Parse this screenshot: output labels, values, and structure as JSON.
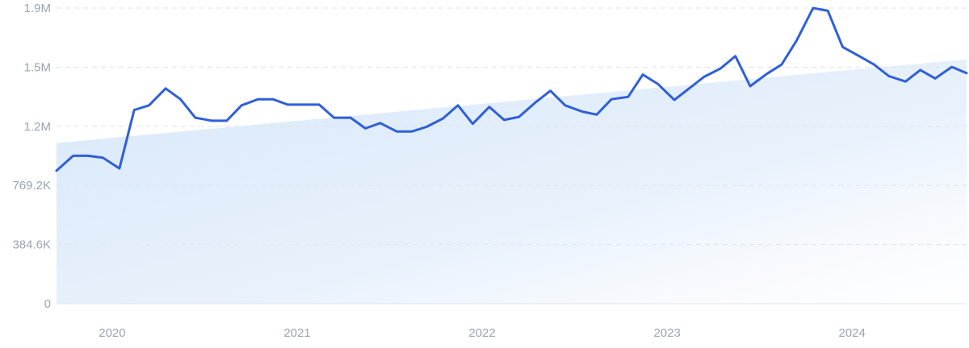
{
  "chart_data": {
    "type": "line",
    "title": "",
    "xlabel": "",
    "ylabel": "",
    "y_ticks": [
      {
        "value": 0,
        "label": "0"
      },
      {
        "value": 384600,
        "label": "384.6K"
      },
      {
        "value": 769200,
        "label": "769.2K"
      },
      {
        "value": 1153800,
        "label": "1.2M"
      },
      {
        "value": 1538400,
        "label": "1.5M"
      },
      {
        "value": 1923000,
        "label": "1.9M"
      }
    ],
    "ylim": [
      0,
      1923000
    ],
    "x_ticks": [
      {
        "value": 2020.0,
        "label": "2020"
      },
      {
        "value": 2021.0,
        "label": "2021"
      },
      {
        "value": 2022.0,
        "label": "2022"
      },
      {
        "value": 2023.0,
        "label": "2023"
      },
      {
        "value": 2024.0,
        "label": "2024"
      }
    ],
    "xlim": [
      2019.83,
      2024.75
    ],
    "grid": true,
    "colors": {
      "line": "#2f5fd9",
      "trend_fill": "#dbe9fa",
      "grid": "#dfe3ea",
      "tick_text": "#9aa3b2"
    },
    "trend": {
      "x": [
        2019.83,
        2024.75
      ],
      "y": [
        1045000,
        1590000
      ]
    },
    "series": [
      {
        "x": [
          2019.83,
          2019.92,
          2020.0,
          2020.08,
          2020.17,
          2020.25,
          2020.33,
          2020.42,
          2020.5,
          2020.58,
          2020.67,
          2020.75,
          2020.83,
          2020.92,
          2021.0,
          2021.08,
          2021.17,
          2021.25,
          2021.33,
          2021.42,
          2021.5,
          2021.58,
          2021.67,
          2021.75,
          2021.83,
          2021.92,
          2022.0,
          2022.08,
          2022.17,
          2022.25,
          2022.33,
          2022.42,
          2022.5,
          2022.58,
          2022.67,
          2022.75,
          2022.83,
          2022.92,
          2023.0,
          2023.08,
          2023.17,
          2023.25,
          2023.33,
          2023.42,
          2023.5,
          2023.58,
          2023.67,
          2023.75,
          2023.83,
          2023.92,
          2024.0,
          2024.08,
          2024.17,
          2024.25,
          2024.33,
          2024.42,
          2024.5,
          2024.58,
          2024.67,
          2024.75
        ],
        "y": [
          865000,
          962000,
          962000,
          950000,
          880000,
          1260000,
          1290000,
          1400000,
          1330000,
          1210000,
          1190000,
          1190000,
          1290000,
          1330000,
          1330000,
          1295000,
          1295000,
          1295000,
          1210000,
          1210000,
          1140000,
          1175000,
          1120000,
          1120000,
          1150000,
          1205000,
          1290000,
          1170000,
          1280000,
          1195000,
          1215000,
          1310000,
          1385000,
          1290000,
          1250000,
          1230000,
          1330000,
          1345000,
          1490000,
          1430000,
          1325000,
          1400000,
          1475000,
          1530000,
          1610000,
          1415000,
          1495000,
          1555000,
          1710000,
          1923000,
          1905000,
          1670000,
          1610000,
          1555000,
          1480000,
          1445000,
          1520000,
          1465000,
          1540000,
          1500000
        ]
      }
    ]
  }
}
